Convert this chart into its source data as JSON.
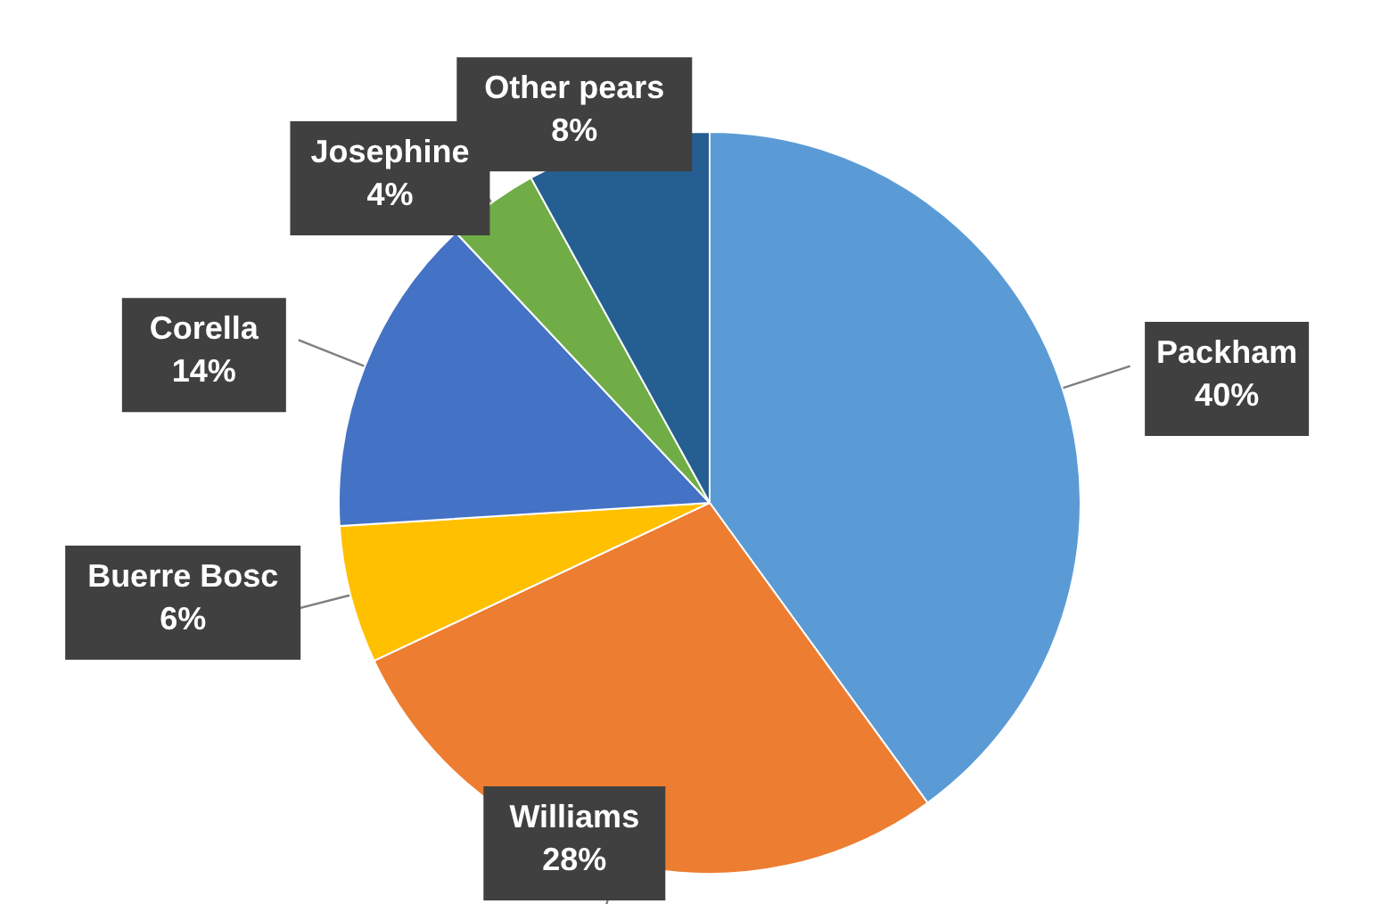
{
  "chart_data": {
    "type": "pie",
    "categories": [
      "Packham",
      "Williams",
      "Buerre Bosc",
      "Corella",
      "Josephine",
      "Other pears"
    ],
    "values": [
      40,
      28,
      6,
      14,
      4,
      8
    ],
    "colors": [
      "#5b9bd5",
      "#ed7d31",
      "#ffc000",
      "#4472c4",
      "#70ad47",
      "#255e91"
    ],
    "value_labels": [
      "40%",
      "28%",
      "6%",
      "14%",
      "4%",
      "8%"
    ]
  }
}
